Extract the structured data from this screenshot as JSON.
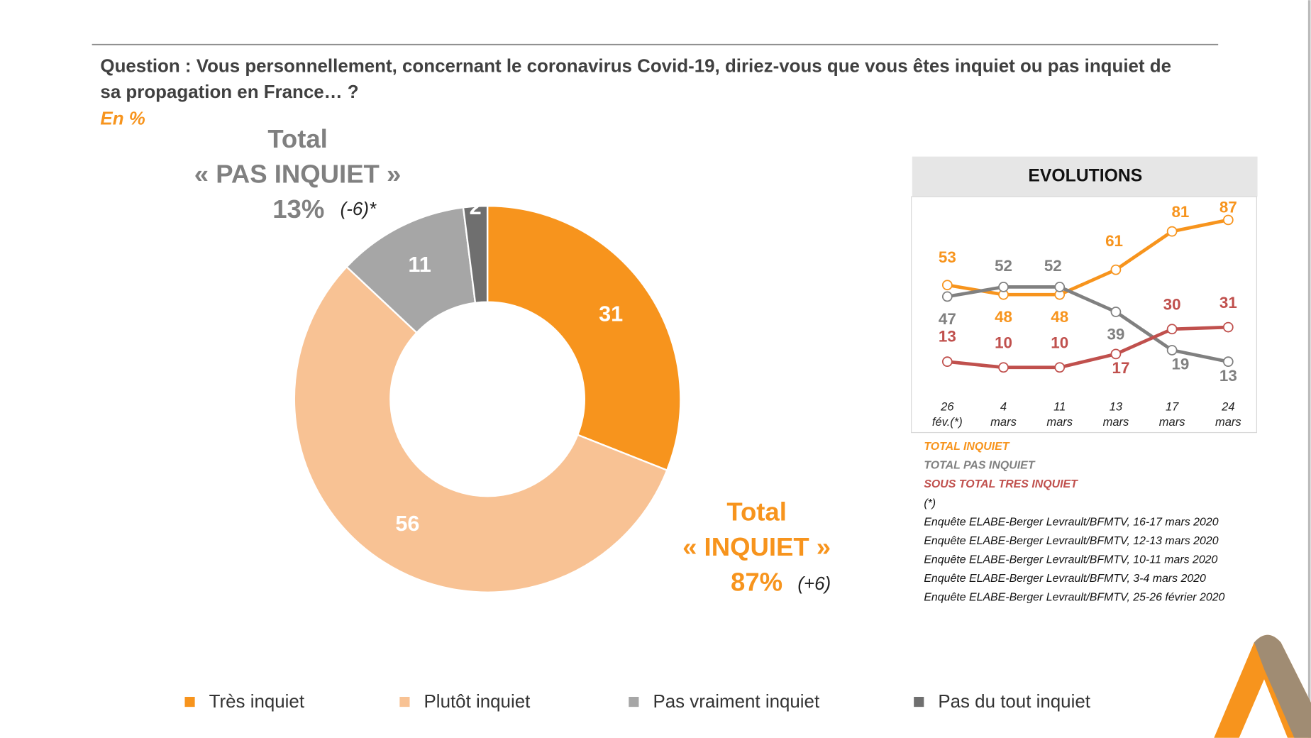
{
  "chart_data": [
    {
      "type": "donut",
      "title": "Question : Vous personnellement, concernant le coronavirus Covid-19, diriez-vous que vous êtes inquiet ou pas inquiet de",
      "title_line2": "sa propagation en France… ?",
      "subtitle": "En %",
      "categories": [
        "Très inquiet",
        "Plutôt inquiet",
        "Pas vraiment inquiet",
        "Pas du tout inquiet"
      ],
      "values": [
        31,
        56,
        11,
        2
      ],
      "colors": [
        "#F7941D",
        "#F8C294",
        "#A6A6A6",
        "#6F6F6F"
      ],
      "annotations": {
        "pas_inquiet": {
          "label": "Total",
          "name": "« PAS INQUIET »",
          "value": "13%",
          "change": "(-6)*"
        },
        "inquiet": {
          "label": "Total",
          "name": "« INQUIET »",
          "value": "87%",
          "change": "(+6)"
        }
      }
    },
    {
      "type": "line",
      "title": "EVOLUTIONS",
      "categories": [
        [
          "26",
          "fév.(*)"
        ],
        [
          "4",
          "mars"
        ],
        [
          "11",
          "mars"
        ],
        [
          "13",
          "mars"
        ],
        [
          "17",
          "mars"
        ],
        [
          "24",
          "mars"
        ]
      ],
      "series": [
        {
          "name": "TOTAL INQUIET",
          "color": "#F7941D",
          "values": [
            53,
            48,
            48,
            61,
            81,
            87
          ]
        },
        {
          "name": "TOTAL PAS INQUIET",
          "color": "#808080",
          "values": [
            47,
            52,
            52,
            39,
            19,
            13
          ]
        },
        {
          "name": "SOUS TOTAL TRES INQUIET",
          "color": "#C0504D",
          "values": [
            13,
            10,
            10,
            17,
            30,
            31
          ]
        }
      ],
      "ylim": [
        0,
        100
      ],
      "notes": [
        "(*)",
        "Enquête ELABE-Berger Levrault/BFMTV, 16-17 mars 2020",
        "Enquête ELABE-Berger Levrault/BFMTV, 12-13 mars 2020",
        "Enquête ELABE-Berger Levrault/BFMTV, 10-11 mars 2020",
        "Enquête ELABE-Berger Levrault/BFMTV, 3-4 mars 2020",
        "Enquête ELABE-Berger Levrault/BFMTV, 25-26 février 2020"
      ]
    }
  ]
}
